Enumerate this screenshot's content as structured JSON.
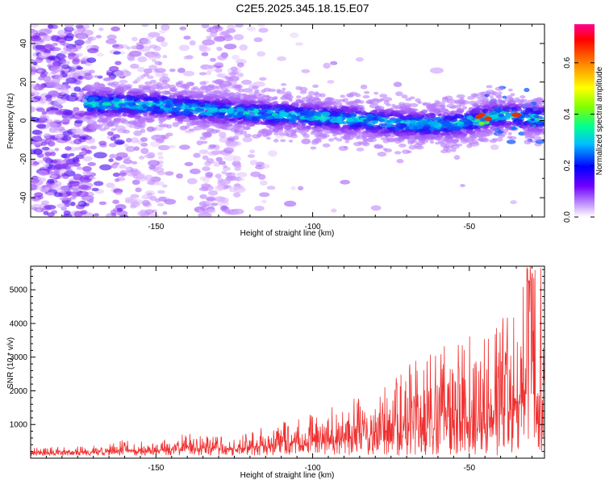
{
  "title": "C2E5.2025.345.18.15.E07",
  "chart_data": [
    {
      "type": "heatmap",
      "name": "spectrogram",
      "xlabel": "Height of straight line (km)",
      "ylabel": "Frequency (Hz)",
      "xlim": [
        -190,
        -26
      ],
      "ylim": [
        -50,
        50
      ],
      "xticks": [
        -150,
        -100,
        -50
      ],
      "yticks": [
        -40,
        -20,
        0,
        20,
        40
      ],
      "xtick_labels": [
        "-150",
        "-100",
        "-50"
      ],
      "ytick_labels": [
        "-40",
        "-20",
        "0",
        "20",
        "40"
      ],
      "colorbar": {
        "label": "Normalized spectral amplitude",
        "range": [
          0,
          0.75
        ],
        "ticks": [
          0,
          0.2,
          0.4,
          0.6
        ],
        "tick_labels": [
          "0.0",
          "0.2",
          "0.4",
          "0.6"
        ]
      },
      "ridge_center_hz": [
        {
          "x": -170,
          "y": 9
        },
        {
          "x": -150,
          "y": 8
        },
        {
          "x": -130,
          "y": 5
        },
        {
          "x": -110,
          "y": 3
        },
        {
          "x": -90,
          "y": 1
        },
        {
          "x": -70,
          "y": -2
        },
        {
          "x": -55,
          "y": -2
        },
        {
          "x": -40,
          "y": 3
        },
        {
          "x": -26,
          "y": 1
        }
      ],
      "ridge_halfwidth_hz": 6
    },
    {
      "type": "line",
      "name": "snr",
      "xlabel": "Height of straight line (km)",
      "ylabel": "SNR (10 * v/v)",
      "xlim": [
        -190,
        -26
      ],
      "ylim": [
        0,
        5700
      ],
      "xticks": [
        -150,
        -100,
        -50
      ],
      "yticks": [
        1000,
        2000,
        3000,
        4000,
        5000
      ],
      "xtick_labels": [
        "-150",
        "-100",
        "-50"
      ],
      "ytick_labels": [
        "1000",
        "2000",
        "3000",
        "4000",
        "5000"
      ],
      "color": "#f03030",
      "envelope": [
        {
          "x": -190,
          "y": 250
        },
        {
          "x": -170,
          "y": 300
        },
        {
          "x": -160,
          "y": 450
        },
        {
          "x": -150,
          "y": 350
        },
        {
          "x": -140,
          "y": 650
        },
        {
          "x": -125,
          "y": 500
        },
        {
          "x": -110,
          "y": 900
        },
        {
          "x": -95,
          "y": 1200
        },
        {
          "x": -80,
          "y": 1600
        },
        {
          "x": -70,
          "y": 2200
        },
        {
          "x": -60,
          "y": 2600
        },
        {
          "x": -50,
          "y": 2900
        },
        {
          "x": -40,
          "y": 3400
        },
        {
          "x": -30,
          "y": 4500
        },
        {
          "x": -26,
          "y": 5000
        }
      ],
      "peak_y": 5700
    }
  ]
}
